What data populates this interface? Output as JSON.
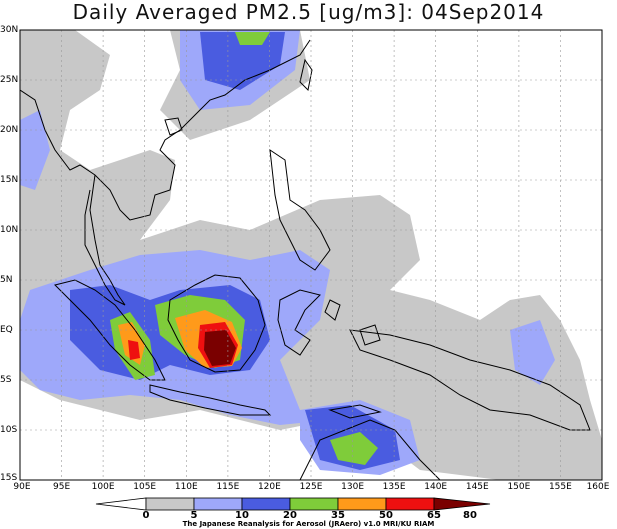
{
  "title": "Daily Averaged PM2.5 [ug/m3]: 04Sep2014",
  "credit": "The Japanese Reanalysis for Aerosol (JRAero) v1.0 MRI/KU RIAM",
  "lat_labels": [
    "30N",
    "25N",
    "20N",
    "15N",
    "10N",
    "5N",
    "EQ",
    "5S",
    "10S",
    "15S"
  ],
  "lon_labels": [
    "90E",
    "95E",
    "100E",
    "105E",
    "110E",
    "115E",
    "120E",
    "125E",
    "130E",
    "135E",
    "140E",
    "145E",
    "150E",
    "155E",
    "160E"
  ],
  "colorbar": {
    "ticks": [
      "0",
      "5",
      "10",
      "20",
      "35",
      "50",
      "65",
      "80"
    ],
    "colors": [
      "#ffffff",
      "#c8c8c8",
      "#9ea8fa",
      "#4a5ce0",
      "#7fcc3a",
      "#ff9a1a",
      "#ee1010",
      "#7a0000"
    ]
  },
  "bounds": {
    "lon_min": 90,
    "lon_max": 160,
    "lat_min": -15,
    "lat_max": 30
  }
}
